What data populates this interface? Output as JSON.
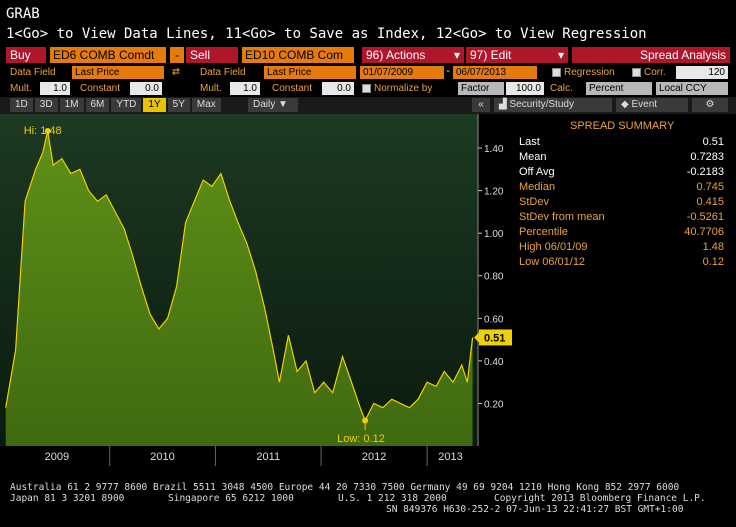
{
  "header": {
    "title": "GRAB",
    "help_line": "1<Go> to View Data Lines, 11<Go> to Save as Index, 12<Go> to View Regression"
  },
  "toolbar": {
    "buy_label": "Buy",
    "buy_ticker": "ED6 COMB Comdt",
    "minus_label": "-",
    "sell_label": "Sell",
    "sell_ticker": "ED10 COMB Com",
    "actions_label": "96) Actions",
    "edit_label": "97) Edit",
    "spread_label": "Spread Analysis"
  },
  "params": {
    "data_field_label": "Data Field",
    "data_field_left": "Last Price",
    "data_field_right_label": "Data Field",
    "data_field_right": "Last Price",
    "start_date": "01/07/2009",
    "end_date": "06/07/2013",
    "regression_label": "Regression",
    "corr_label": "Corr.",
    "corr_value": "120",
    "mult_label": "Mult.",
    "mult_left": "1.0",
    "constant_label": "Constant",
    "constant_left": "0.0",
    "mult_right_label": "Mult.",
    "mult_right": "1.0",
    "constant_right_label": "Constant",
    "constant_right": "0.0",
    "normalize_label": "Normalize by",
    "factor_label": "Factor",
    "factor_value": "100.0",
    "calc_label": "Calc.",
    "calc_value": "Percent",
    "ccy_value": "Local CCY"
  },
  "range_tabs": [
    "1D",
    "3D",
    "1M",
    "6M",
    "YTD",
    "1Y",
    "5Y",
    "Max"
  ],
  "selected_tab": "1Y",
  "frequency": "Daily",
  "panel_tabs": {
    "security_study": "Security/Study",
    "event": "Event"
  },
  "summary": {
    "title": "SPREAD SUMMARY",
    "rows": [
      {
        "label": "Last",
        "value": "0.51",
        "color": "#ffffff"
      },
      {
        "label": "Mean",
        "value": "0.7283",
        "color": "#ffffff"
      },
      {
        "label": "Off Avg",
        "value": "-0.2183",
        "color": "#ffffff"
      },
      {
        "label": "Median",
        "value": "0.745",
        "color": "#e8a23a"
      },
      {
        "label": "StDev",
        "value": "0.415",
        "color": "#e8a23a"
      },
      {
        "label": "StDev from mean",
        "value": "-0.5261",
        "color": "#e8a23a"
      },
      {
        "label": "Percentile",
        "value": "40.7706",
        "color": "#e8a23a"
      },
      {
        "label": "High 06/01/09",
        "value": "1.48",
        "color": "#e8a23a"
      },
      {
        "label": "Low 06/01/12",
        "value": "0.12",
        "color": "#e8a23a"
      }
    ]
  },
  "chart_data": {
    "type": "area",
    "title": "",
    "xlabel": "",
    "ylabel": "",
    "x_ticks": [
      "2009",
      "2010",
      "2011",
      "2012",
      "2013"
    ],
    "y_ticks": [
      0.2,
      0.4,
      0.6,
      0.8,
      1.0,
      1.2,
      1.4
    ],
    "ylim": [
      0.0,
      1.56
    ],
    "grid": false,
    "series": [
      {
        "color": "#6a9a1a",
        "line_color": "#f0d000",
        "x": [
          "2009-01-07",
          "2009-02-10",
          "2009-03-15",
          "2009-04-20",
          "2009-05-15",
          "2009-06-01",
          "2009-06-20",
          "2009-07-20",
          "2009-08-20",
          "2009-09-20",
          "2009-10-20",
          "2009-11-20",
          "2009-12-20",
          "2010-01-20",
          "2010-02-20",
          "2010-03-20",
          "2010-04-20",
          "2010-05-20",
          "2010-06-20",
          "2010-07-20",
          "2010-08-20",
          "2010-09-20",
          "2010-10-20",
          "2010-11-20",
          "2010-12-20",
          "2011-01-20",
          "2011-02-20",
          "2011-03-20",
          "2011-04-20",
          "2011-05-20",
          "2011-06-20",
          "2011-07-20",
          "2011-08-10",
          "2011-09-10",
          "2011-10-10",
          "2011-11-10",
          "2011-12-10",
          "2012-01-10",
          "2012-02-10",
          "2012-03-15",
          "2012-04-15",
          "2012-05-15",
          "2012-06-01",
          "2012-07-01",
          "2012-08-01",
          "2012-09-01",
          "2012-10-01",
          "2012-11-01",
          "2012-12-01",
          "2013-01-01",
          "2013-02-01",
          "2013-03-01",
          "2013-04-01",
          "2013-05-01",
          "2013-05-20",
          "2013-06-07"
        ],
        "y": [
          0.18,
          0.45,
          1.15,
          1.3,
          1.38,
          1.48,
          1.32,
          1.35,
          1.28,
          1.3,
          1.2,
          1.15,
          1.18,
          1.1,
          1.02,
          0.9,
          0.75,
          0.62,
          0.55,
          0.6,
          0.75,
          1.05,
          1.15,
          1.25,
          1.22,
          1.28,
          1.15,
          1.05,
          0.95,
          0.82,
          0.65,
          0.45,
          0.3,
          0.52,
          0.35,
          0.4,
          0.25,
          0.3,
          0.25,
          0.42,
          0.3,
          0.18,
          0.12,
          0.2,
          0.18,
          0.22,
          0.2,
          0.18,
          0.22,
          0.3,
          0.28,
          0.35,
          0.3,
          0.38,
          0.3,
          0.51
        ]
      }
    ],
    "annotations": {
      "high_label": "Hi: 1.48",
      "low_label": "Low: 0.12",
      "last_label": "0.51"
    }
  },
  "footer": {
    "line1": "Australia 61 2 9777 8600 Brazil 5511 3048 4500 Europe 44 20 7330 7500 Germany 49 69 9204 1210 Hong Kong 852 2977 6000",
    "line2a": "Japan 81 3 3201 8900",
    "line2b": "Singapore 65 6212 1000",
    "line2c": "U.S. 1 212 318 2000",
    "line2d": "Copyright 2013 Bloomberg Finance L.P.",
    "line3": "SN 849376 H630-252-2 07-Jun-13 22:41:27 BST  GMT+1:00"
  }
}
